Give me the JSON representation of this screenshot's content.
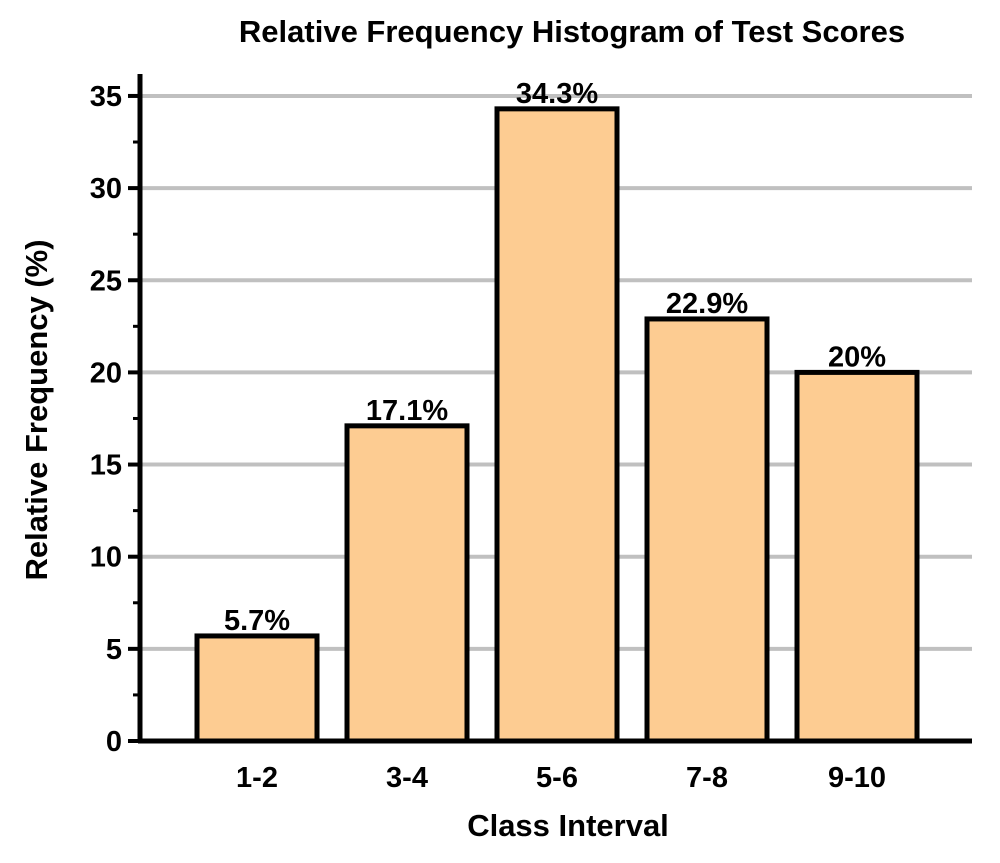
{
  "chart_data": {
    "type": "bar",
    "title": "Relative Frequency Histogram of Test Scores",
    "xlabel": "Class Interval",
    "ylabel": "Relative Frequency (%)",
    "categories": [
      "1-2",
      "3-4",
      "5-6",
      "7-8",
      "9-10"
    ],
    "values": [
      5.7,
      17.1,
      34.3,
      22.9,
      20
    ],
    "data_labels": [
      "5.7%",
      "17.1%",
      "34.3%",
      "22.9%",
      "20%"
    ],
    "ylim": [
      0,
      35
    ],
    "yticks": [
      0,
      5,
      10,
      15,
      20,
      25,
      30,
      35
    ],
    "ytick_labels": [
      "0",
      "5",
      "10",
      "15",
      "20",
      "25",
      "30",
      "35"
    ],
    "grid": true,
    "legend": "none",
    "colors": {
      "bar_fill": "#FDCC92",
      "bar_edge": "#000000",
      "grid": "#C0C0C0",
      "axis": "#000000"
    }
  }
}
